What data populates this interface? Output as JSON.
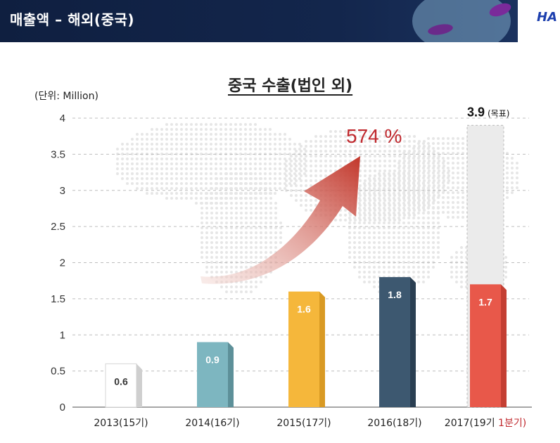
{
  "header": {
    "title": "매출액 – 해외(중국)",
    "logo_text": "HA"
  },
  "chart_data": {
    "type": "bar",
    "title": "중국 수출(법인 외)",
    "unit_label": "(단위: Million)",
    "ylim": [
      0,
      4
    ],
    "yticks": [
      "0",
      "0.5",
      "1",
      "1.5",
      "2",
      "2.5",
      "3",
      "3.5",
      "4"
    ],
    "categories": [
      "2013(15기)",
      "2014(16기)",
      "2015(17기)",
      "2016(18기)",
      "2017(19기 1분기)"
    ],
    "category_parts": [
      {
        "main": "2013(15기)",
        "highlight": ""
      },
      {
        "main": "2014(16기)",
        "highlight": ""
      },
      {
        "main": "2015(17기)",
        "highlight": ""
      },
      {
        "main": "2016(18기)",
        "highlight": ""
      },
      {
        "main": "2017(19기 ",
        "highlight": "1분기)"
      }
    ],
    "values": [
      0.6,
      0.9,
      1.6,
      1.8,
      1.7
    ],
    "value_labels": [
      "0.6",
      "0.9",
      "1.6",
      "1.8",
      "1.7"
    ],
    "bar_colors": [
      "#ffffff",
      "#7db6c0",
      "#f5b73b",
      "#3d5870",
      "#e8584a"
    ],
    "bar_side_colors": [
      "#cfcfcf",
      "#5d9099",
      "#d99a24",
      "#2a3f52",
      "#c43f33"
    ],
    "bar_text_colors": [
      "#333333",
      "#ffffff",
      "#ffffff",
      "#ffffff",
      "#ffffff"
    ],
    "target": {
      "value": 3.9,
      "label": "3.9",
      "sublabel": "(목표)"
    },
    "growth_label": "574 %",
    "grid": true,
    "highlight_color": "#c0282d"
  }
}
